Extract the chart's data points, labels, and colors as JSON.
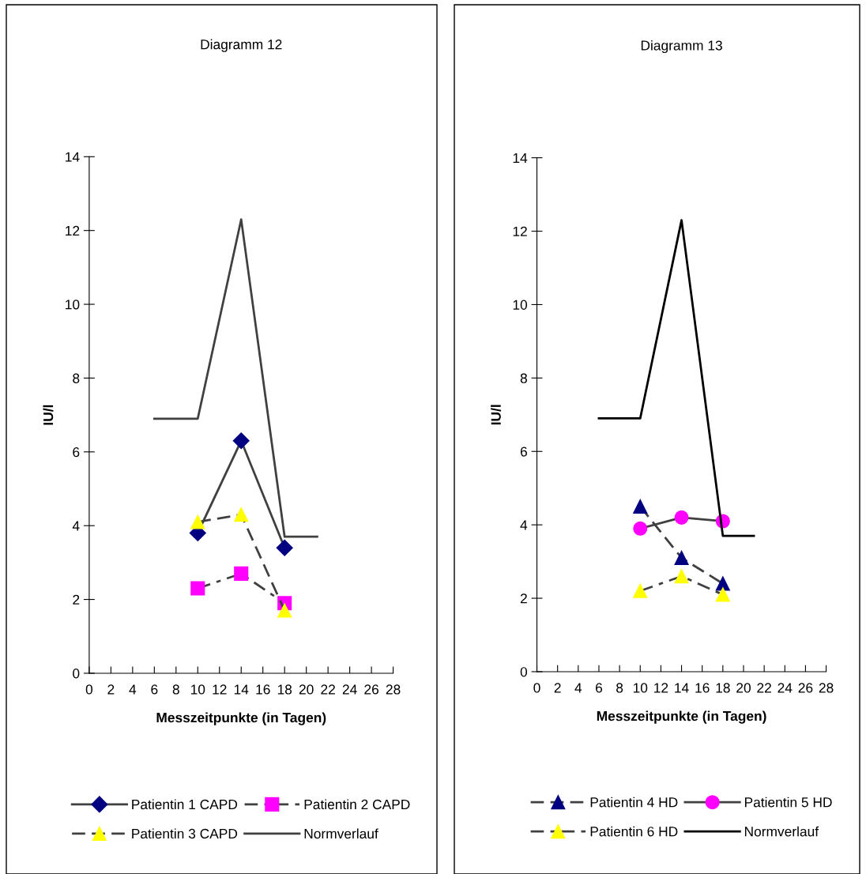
{
  "chart_data": [
    {
      "type": "line",
      "title": "Diagramm 12",
      "xlabel": "Messzeitpunkte (in Tagen)",
      "ylabel": "IU/l",
      "xlim": [
        0,
        28
      ],
      "xticks": [
        0,
        2,
        4,
        6,
        8,
        10,
        12,
        14,
        16,
        18,
        20,
        22,
        24,
        26,
        28
      ],
      "ylim": [
        0,
        14
      ],
      "yticks": [
        0,
        2,
        4,
        6,
        8,
        10,
        12,
        14
      ],
      "grid": false,
      "legend": "bottom",
      "series": [
        {
          "name": "Patientin 1 CAPD",
          "color": "#000080",
          "marker": "diamond",
          "line_style": "solid",
          "x": [
            10,
            14,
            18
          ],
          "values": [
            3.8,
            6.3,
            3.4
          ]
        },
        {
          "name": "Patientin 2 CAPD",
          "color": "#ff00ff",
          "marker": "square",
          "line_style": "dashdot",
          "x": [
            10,
            14,
            18
          ],
          "values": [
            2.3,
            2.7,
            1.9
          ]
        },
        {
          "name": "Patientin 3 CAPD",
          "color": "#ffff00",
          "marker": "triangle",
          "line_style": "dashed",
          "x": [
            10,
            14,
            18
          ],
          "values": [
            4.1,
            4.3,
            1.7
          ]
        },
        {
          "name": "Normverlauf",
          "color": "#404040",
          "marker": "none",
          "line_style": "solid",
          "x": [
            6,
            10,
            14,
            18,
            21
          ],
          "values": [
            6.9,
            6.9,
            12.3,
            3.7,
            3.7
          ]
        }
      ]
    },
    {
      "type": "line",
      "title": "Diagramm 13",
      "xlabel": "Messzeitpunkte (in Tagen)",
      "ylabel": "IU/l",
      "xlim": [
        0,
        28
      ],
      "xticks": [
        0,
        2,
        4,
        6,
        8,
        10,
        12,
        14,
        16,
        18,
        20,
        22,
        24,
        26,
        28
      ],
      "ylim": [
        0,
        14
      ],
      "yticks": [
        0,
        2,
        4,
        6,
        8,
        10,
        12,
        14
      ],
      "grid": false,
      "legend": "bottom",
      "series": [
        {
          "name": "Patientin 4 HD",
          "color": "#000080",
          "marker": "triangle",
          "line_style": "dashed",
          "x": [
            10,
            14,
            18
          ],
          "values": [
            4.5,
            3.1,
            2.4
          ]
        },
        {
          "name": "Patientin 5 HD",
          "color": "#ff00ff",
          "marker": "circle",
          "line_style": "solid",
          "x": [
            10,
            14,
            18
          ],
          "values": [
            3.9,
            4.2,
            4.1
          ]
        },
        {
          "name": "Patientin 6 HD",
          "color": "#ffff00",
          "marker": "triangle",
          "line_style": "dashdot",
          "x": [
            10,
            14,
            18
          ],
          "values": [
            2.2,
            2.6,
            2.1
          ]
        },
        {
          "name": "Normverlauf",
          "color": "#000000",
          "marker": "none",
          "line_style": "solid",
          "x": [
            6,
            10,
            14,
            18,
            21
          ],
          "values": [
            6.9,
            6.9,
            12.3,
            3.7,
            3.7
          ]
        }
      ]
    }
  ]
}
